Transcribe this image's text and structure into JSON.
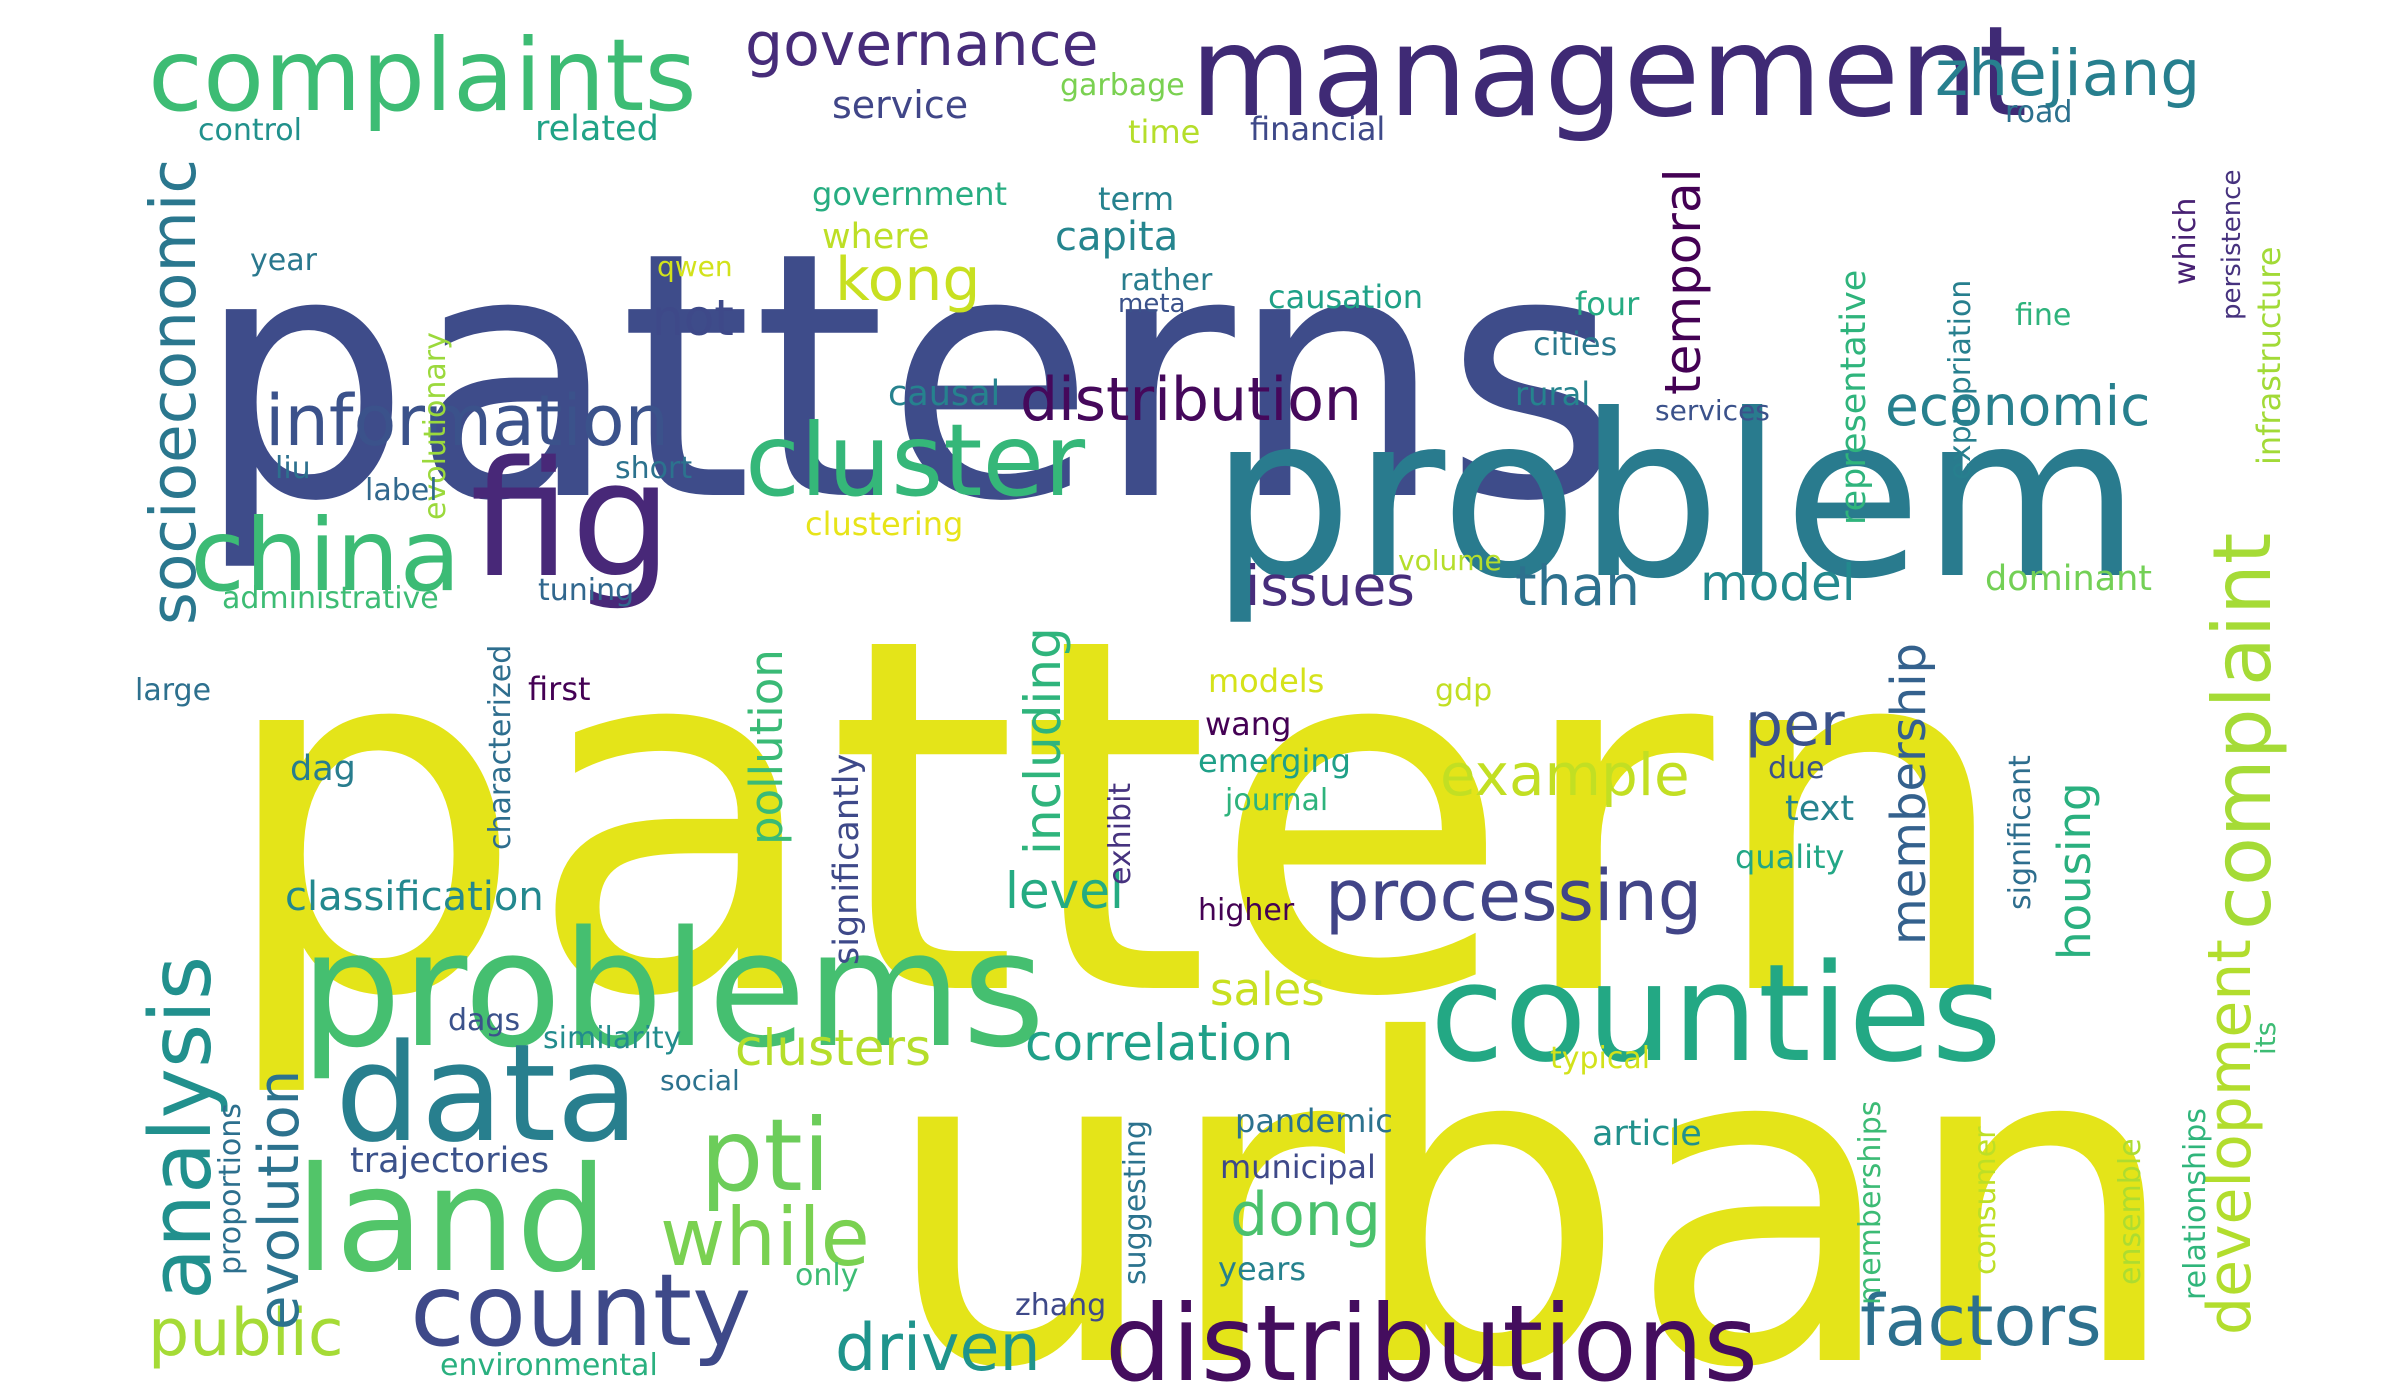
{
  "words": [
    {
      "text": "patterns",
      "color": "#3e4c8a"
    },
    {
      "text": "pattern",
      "color": "#e4e419"
    },
    {
      "text": "urban",
      "color": "#e4e419"
    },
    {
      "text": "problem",
      "color": "#297b8e"
    },
    {
      "text": "problems",
      "color": "#45bf70"
    },
    {
      "text": "management",
      "color": "#3f2a75"
    },
    {
      "text": "counties",
      "color": "#23a884"
    },
    {
      "text": "distributions",
      "color": "#440d5e"
    },
    {
      "text": "data",
      "color": "#287f8e"
    },
    {
      "text": "land",
      "color": "#52c569"
    },
    {
      "text": "complaints",
      "color": "#3dbc74"
    },
    {
      "text": "fig",
      "color": "#482878"
    },
    {
      "text": "cluster",
      "color": "#35b779"
    },
    {
      "text": "china",
      "color": "#3cbb75"
    },
    {
      "text": "county",
      "color": "#3e4989"
    },
    {
      "text": "analysis",
      "color": "#21908d"
    },
    {
      "text": "information",
      "color": "#3b528b"
    },
    {
      "text": "complaint",
      "color": "#a5db36"
    },
    {
      "text": "development",
      "color": "#b2dd2d"
    },
    {
      "text": "socioeconomic",
      "color": "#2a778e"
    },
    {
      "text": "zhejiang",
      "color": "#277f8e"
    },
    {
      "text": "governance",
      "color": "#472c7a"
    },
    {
      "text": "pti",
      "color": "#6ccd5a"
    },
    {
      "text": "while",
      "color": "#7ad151"
    },
    {
      "text": "distribution",
      "color": "#45085b"
    },
    {
      "text": "processing",
      "color": "#414487"
    },
    {
      "text": "factors",
      "color": "#2d708e"
    },
    {
      "text": "driven",
      "color": "#1f948c"
    },
    {
      "text": "public",
      "color": "#a5db36"
    },
    {
      "text": "evolution",
      "color": "#2c728e"
    },
    {
      "text": "economic",
      "color": "#27808e"
    },
    {
      "text": "kong",
      "color": "#c8e020"
    },
    {
      "text": "issues",
      "color": "#472d7b"
    },
    {
      "text": "than",
      "color": "#2d718e"
    },
    {
      "text": "model",
      "color": "#23898e"
    },
    {
      "text": "temporal",
      "color": "#440154"
    },
    {
      "text": "membership",
      "color": "#34618d"
    },
    {
      "text": "per",
      "color": "#3b528b"
    },
    {
      "text": "example",
      "color": "#c2df23"
    },
    {
      "text": "pollution",
      "color": "#3aba76"
    },
    {
      "text": "including",
      "color": "#2fb47c"
    },
    {
      "text": "housing",
      "color": "#2ab07f"
    },
    {
      "text": "dong",
      "color": "#4ac16d"
    },
    {
      "text": "sales",
      "color": "#c8e020"
    },
    {
      "text": "clusters",
      "color": "#b5de2b"
    },
    {
      "text": "correlation",
      "color": "#1fa088"
    },
    {
      "text": "level",
      "color": "#25ab82"
    },
    {
      "text": "not",
      "color": "#3e4989"
    },
    {
      "text": "classification",
      "color": "#23888e"
    },
    {
      "text": "service",
      "color": "#404688"
    },
    {
      "text": "capita",
      "color": "#25858e"
    },
    {
      "text": "related",
      "color": "#20a386"
    },
    {
      "text": "garbage",
      "color": "#7ad151"
    },
    {
      "text": "time",
      "color": "#b5de2b"
    },
    {
      "text": "financial",
      "color": "#3e4989"
    },
    {
      "text": "road",
      "color": "#2d718e"
    },
    {
      "text": "control",
      "color": "#21918c"
    },
    {
      "text": "government",
      "color": "#27ad81"
    },
    {
      "text": "term",
      "color": "#26828e"
    },
    {
      "text": "where",
      "color": "#bddf26"
    },
    {
      "text": "rather",
      "color": "#287d8e"
    },
    {
      "text": "meta",
      "color": "#3b528b"
    },
    {
      "text": "causation",
      "color": "#1fa187"
    },
    {
      "text": "four",
      "color": "#25ab82"
    },
    {
      "text": "cities",
      "color": "#2a788e"
    },
    {
      "text": "fine",
      "color": "#2eb37c"
    },
    {
      "text": "year",
      "color": "#2a788e"
    },
    {
      "text": "qwen",
      "color": "#d2e21b"
    },
    {
      "text": "evolutionary",
      "color": "#9bd93c"
    },
    {
      "text": "causal",
      "color": "#26828e"
    },
    {
      "text": "rural",
      "color": "#25838e"
    },
    {
      "text": "services",
      "color": "#3b528b"
    },
    {
      "text": "expropriation",
      "color": "#277f8e"
    },
    {
      "text": "which",
      "color": "#482173"
    },
    {
      "text": "persistence",
      "color": "#46327e"
    },
    {
      "text": "infrastructure",
      "color": "#a2da37"
    },
    {
      "text": "representative",
      "color": "#2fb47c"
    },
    {
      "text": "liu",
      "color": "#2d708e"
    },
    {
      "text": "short",
      "color": "#2c728e"
    },
    {
      "text": "label",
      "color": "#31688e"
    },
    {
      "text": "clustering",
      "color": "#e7e419"
    },
    {
      "text": "administrative",
      "color": "#3dbc74"
    },
    {
      "text": "tuning",
      "color": "#31678e"
    },
    {
      "text": "volume",
      "color": "#b5de2b"
    },
    {
      "text": "dominant",
      "color": "#73d056"
    },
    {
      "text": "large",
      "color": "#2d708e"
    },
    {
      "text": "first",
      "color": "#440154"
    },
    {
      "text": "characterized",
      "color": "#2e6e8e"
    },
    {
      "text": "significantly",
      "color": "#3e4989"
    },
    {
      "text": "models",
      "color": "#d5e21a"
    },
    {
      "text": "gdp",
      "color": "#c2df23"
    },
    {
      "text": "wang",
      "color": "#440154"
    },
    {
      "text": "emerging",
      "color": "#1fa088"
    },
    {
      "text": "journal",
      "color": "#2eb37c"
    },
    {
      "text": "exhibit",
      "color": "#46337f"
    },
    {
      "text": "due",
      "color": "#3b528b"
    },
    {
      "text": "text",
      "color": "#26828e"
    },
    {
      "text": "quality",
      "color": "#22a785"
    },
    {
      "text": "significant",
      "color": "#2e6e8e"
    },
    {
      "text": "dag",
      "color": "#287d8e"
    },
    {
      "text": "higher",
      "color": "#440154"
    },
    {
      "text": "dags",
      "color": "#3b528b"
    },
    {
      "text": "similarity",
      "color": "#228c8d"
    },
    {
      "text": "social",
      "color": "#2c728e"
    },
    {
      "text": "proportions",
      "color": "#2d708e"
    },
    {
      "text": "trajectories",
      "color": "#3b528b"
    },
    {
      "text": "pandemic",
      "color": "#2c728e"
    },
    {
      "text": "municipal",
      "color": "#3e4989"
    },
    {
      "text": "suggesting",
      "color": "#2c738e"
    },
    {
      "text": "years",
      "color": "#26818e"
    },
    {
      "text": "only",
      "color": "#3dbc74"
    },
    {
      "text": "zhang",
      "color": "#3e4989"
    },
    {
      "text": "article",
      "color": "#21918c"
    },
    {
      "text": "typical",
      "color": "#d2e21b"
    },
    {
      "text": "consumer",
      "color": "#bddf26"
    },
    {
      "text": "memberships",
      "color": "#3cbb75"
    },
    {
      "text": "ensemble",
      "color": "#addc30"
    },
    {
      "text": "relationships",
      "color": "#30b57b"
    },
    {
      "text": "its",
      "color": "#3dbc74"
    },
    {
      "text": "environmental",
      "color": "#2ab07f"
    }
  ]
}
